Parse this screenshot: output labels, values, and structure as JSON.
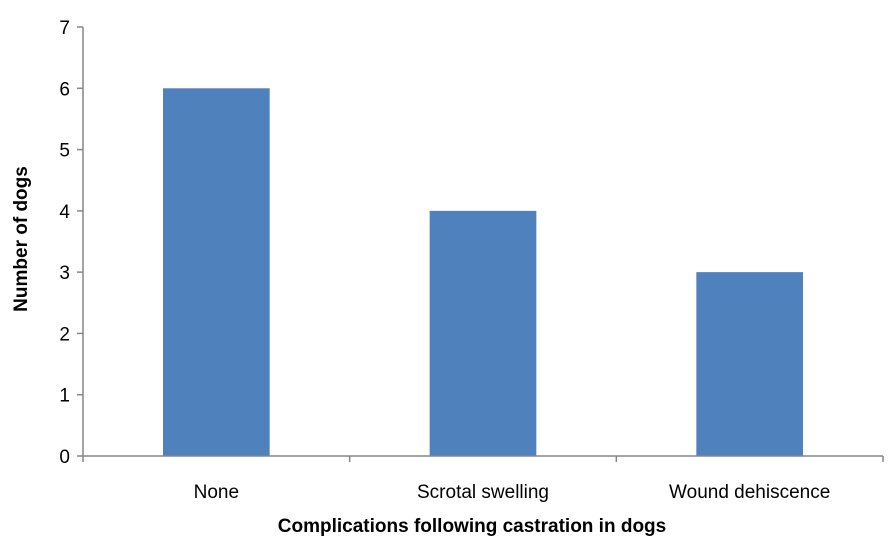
{
  "chart_data": {
    "type": "bar",
    "categories": [
      "None",
      "Scrotal swelling",
      "Wound dehiscence"
    ],
    "values": [
      6,
      4,
      3
    ],
    "title": "",
    "xlabel": "Complications following castration in dogs",
    "ylabel": "Number of dogs",
    "ylim": [
      0,
      7
    ],
    "yticks": [
      "0",
      "1",
      "2",
      "3",
      "4",
      "5",
      "6",
      "7"
    ],
    "grid": false,
    "legend": "none",
    "bar_color": "#4f81bd",
    "axis_color": "#868686"
  }
}
